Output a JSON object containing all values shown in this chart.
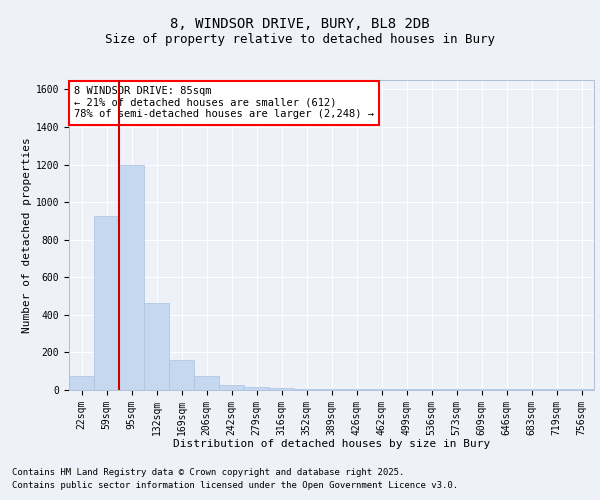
{
  "title1": "8, WINDSOR DRIVE, BURY, BL8 2DB",
  "title2": "Size of property relative to detached houses in Bury",
  "xlabel": "Distribution of detached houses by size in Bury",
  "ylabel": "Number of detached properties",
  "bar_color": "#c5d8f0",
  "bar_edge_color": "#a8c4e0",
  "vline_color": "#cc0000",
  "vline_x_idx": 2,
  "categories": [
    "22sqm",
    "59sqm",
    "95sqm",
    "132sqm",
    "169sqm",
    "206sqm",
    "242sqm",
    "279sqm",
    "316sqm",
    "352sqm",
    "389sqm",
    "426sqm",
    "462sqm",
    "499sqm",
    "536sqm",
    "573sqm",
    "609sqm",
    "646sqm",
    "683sqm",
    "719sqm",
    "756sqm"
  ],
  "values": [
    75,
    925,
    1195,
    465,
    160,
    75,
    25,
    15,
    10,
    5,
    5,
    5,
    5,
    5,
    5,
    5,
    5,
    5,
    5,
    5,
    5
  ],
  "ylim": [
    0,
    1650
  ],
  "yticks": [
    0,
    200,
    400,
    600,
    800,
    1000,
    1200,
    1400,
    1600
  ],
  "annotation_text": "8 WINDSOR DRIVE: 85sqm\n← 21% of detached houses are smaller (612)\n78% of semi-detached houses are larger (2,248) →",
  "footer1": "Contains HM Land Registry data © Crown copyright and database right 2025.",
  "footer2": "Contains public sector information licensed under the Open Government Licence v3.0.",
  "background_color": "#eef2f8",
  "plot_bg_color": "#eef2f8",
  "grid_color": "#ffffff",
  "title1_fontsize": 10,
  "title2_fontsize": 9,
  "axis_label_fontsize": 8,
  "tick_fontsize": 7,
  "annotation_fontsize": 7.5,
  "footer_fontsize": 6.5
}
